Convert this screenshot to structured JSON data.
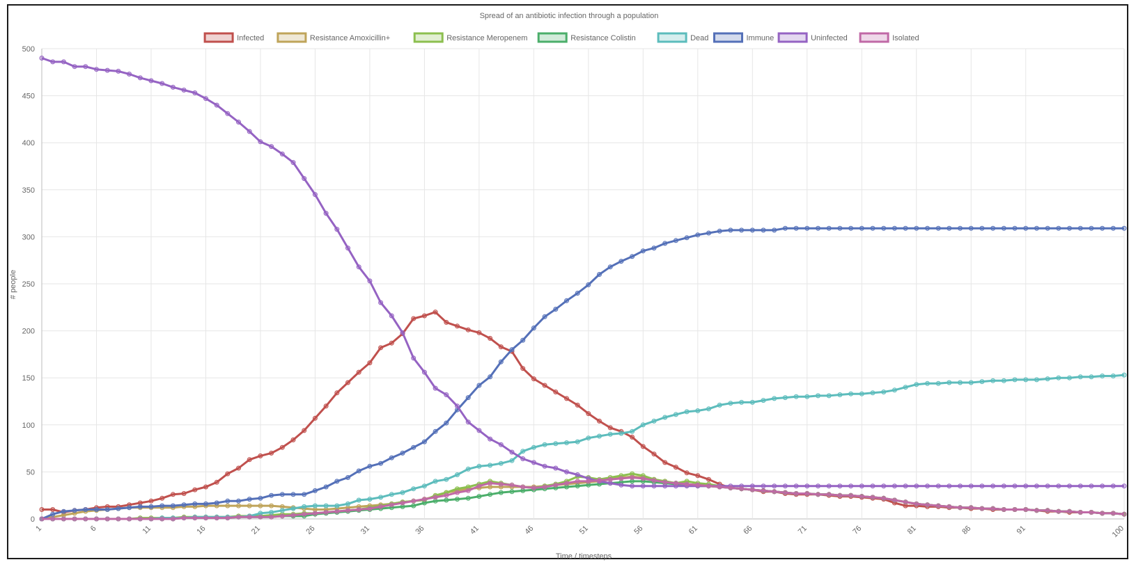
{
  "chart_data": {
    "type": "line",
    "title": "Spread of an antibiotic infection through a population",
    "xlabel": "Time / timesteps",
    "ylabel": "# people",
    "xlim": [
      1,
      100
    ],
    "ylim": [
      0,
      500
    ],
    "y_ticks": [
      0,
      50,
      100,
      150,
      200,
      250,
      300,
      350,
      400,
      450,
      500
    ],
    "x_ticks": [
      1,
      6,
      11,
      16,
      21,
      26,
      31,
      36,
      41,
      46,
      51,
      56,
      61,
      66,
      71,
      76,
      81,
      86,
      91,
      100
    ],
    "grid": true,
    "legend_position": "top",
    "series": [
      {
        "name": "Infected",
        "color": "#c0504d",
        "values": [
          10,
          10,
          7,
          9,
          10,
          12,
          13,
          13,
          15,
          17,
          19,
          22,
          26,
          27,
          31,
          34,
          39,
          48,
          54,
          63,
          67,
          70,
          76,
          84,
          94,
          107,
          120,
          134,
          145,
          156,
          166,
          182,
          187,
          197,
          213,
          216,
          220,
          209,
          205,
          201,
          198,
          192,
          183,
          178,
          160,
          149,
          142,
          135,
          128,
          121,
          112,
          104,
          97,
          93,
          87,
          77,
          69,
          60,
          55,
          49,
          46,
          42,
          37,
          33,
          32,
          31,
          29,
          29,
          27,
          26,
          26,
          26,
          25,
          24,
          24,
          23,
          22,
          21,
          17,
          14,
          14,
          13,
          13,
          12,
          12,
          11,
          11,
          10,
          10,
          10,
          10,
          9,
          8,
          8,
          7,
          7,
          7,
          6,
          6,
          5
        ]
      },
      {
        "name": "Resistance Amoxicillin+",
        "color": "#bfa45a",
        "values": [
          0,
          2,
          4,
          6,
          8,
          9,
          10,
          11,
          12,
          12,
          12,
          12,
          12,
          13,
          13,
          14,
          14,
          14,
          14,
          14,
          14,
          14,
          13,
          12,
          11,
          10,
          10,
          11,
          12,
          13,
          14,
          15,
          16,
          18,
          19,
          21,
          24,
          28,
          30,
          32,
          33,
          34,
          34,
          34,
          34,
          34,
          35,
          36,
          37,
          38,
          39,
          40,
          42,
          44,
          45,
          44,
          42,
          40,
          38,
          37,
          36,
          35,
          34,
          33,
          32,
          31,
          30,
          29,
          28,
          27,
          27,
          26,
          26,
          25,
          25,
          24,
          23,
          22,
          20,
          18,
          16,
          15,
          14,
          13,
          12,
          12,
          11,
          11,
          10,
          10,
          10,
          9,
          9,
          8,
          8,
          7,
          7,
          6,
          6,
          5
        ]
      },
      {
        "name": "Resistance Meropenem",
        "color": "#8cbf4f",
        "values": [
          0,
          0,
          0,
          0,
          0,
          0,
          0,
          0,
          0,
          1,
          1,
          1,
          1,
          2,
          2,
          2,
          2,
          2,
          3,
          3,
          3,
          4,
          5,
          5,
          6,
          6,
          7,
          8,
          9,
          10,
          12,
          14,
          16,
          18,
          19,
          20,
          25,
          28,
          32,
          34,
          37,
          40,
          38,
          36,
          34,
          33,
          35,
          37,
          40,
          45,
          44,
          42,
          44,
          46,
          48,
          46,
          42,
          40,
          38,
          40,
          38,
          37,
          35,
          33,
          32,
          31,
          30,
          29,
          28,
          27,
          27,
          26,
          26,
          25,
          25,
          24,
          23,
          22,
          20,
          18,
          16,
          15,
          14,
          13,
          12,
          12,
          11,
          11,
          10,
          10,
          10,
          9,
          9,
          8,
          8,
          7,
          7,
          6,
          6,
          5
        ]
      },
      {
        "name": "Resistance Colistin",
        "color": "#4bae6a",
        "values": [
          0,
          0,
          0,
          0,
          0,
          0,
          0,
          0,
          0,
          0,
          0,
          0,
          0,
          1,
          1,
          1,
          1,
          1,
          2,
          2,
          2,
          2,
          3,
          3,
          3,
          5,
          6,
          7,
          8,
          9,
          10,
          11,
          12,
          13,
          14,
          17,
          19,
          20,
          21,
          22,
          24,
          26,
          28,
          29,
          30,
          31,
          32,
          33,
          34,
          35,
          36,
          37,
          38,
          39,
          40,
          40,
          39,
          38,
          37,
          36,
          35,
          35,
          34,
          33,
          32,
          31,
          30,
          29,
          28,
          27,
          27,
          26,
          26,
          25,
          25,
          24,
          23,
          22,
          20,
          18,
          16,
          15,
          14,
          13,
          12,
          12,
          11,
          11,
          10,
          10,
          10,
          9,
          9,
          8,
          8,
          7,
          7,
          6,
          6,
          5
        ]
      },
      {
        "name": "Dead",
        "color": "#5cbcbc",
        "values": [
          0,
          0,
          0,
          0,
          0,
          0,
          0,
          0,
          0,
          0,
          0,
          1,
          1,
          1,
          2,
          2,
          2,
          2,
          2,
          3,
          6,
          7,
          9,
          11,
          13,
          14,
          14,
          14,
          16,
          20,
          21,
          23,
          26,
          28,
          32,
          35,
          40,
          42,
          47,
          53,
          56,
          57,
          59,
          62,
          72,
          76,
          79,
          80,
          81,
          82,
          86,
          88,
          90,
          91,
          93,
          100,
          104,
          108,
          111,
          114,
          115,
          117,
          121,
          123,
          124,
          124,
          126,
          128,
          129,
          130,
          130,
          131,
          131,
          132,
          133,
          133,
          134,
          135,
          137,
          140,
          143,
          144,
          144,
          145,
          145,
          145,
          146,
          147,
          147,
          148,
          148,
          148,
          149,
          150,
          150,
          151,
          151,
          152,
          152,
          153
        ]
      },
      {
        "name": "Immune",
        "color": "#5470b8",
        "values": [
          0,
          5,
          8,
          9,
          10,
          10,
          10,
          11,
          12,
          13,
          13,
          14,
          14,
          15,
          16,
          16,
          17,
          19,
          19,
          21,
          22,
          25,
          26,
          26,
          26,
          30,
          34,
          40,
          44,
          51,
          56,
          59,
          65,
          70,
          76,
          82,
          93,
          102,
          116,
          129,
          142,
          151,
          167,
          180,
          190,
          203,
          215,
          223,
          232,
          240,
          249,
          260,
          268,
          274,
          279,
          285,
          288,
          293,
          296,
          299,
          302,
          304,
          306,
          307,
          307,
          307,
          307,
          307,
          309,
          309,
          309,
          309,
          309,
          309,
          309,
          309,
          309,
          309,
          309,
          309,
          309,
          309,
          309,
          309,
          309,
          309,
          309,
          309,
          309,
          309,
          309,
          309,
          309,
          309,
          309,
          309,
          309,
          309,
          309,
          309
        ]
      },
      {
        "name": "Uninfected",
        "color": "#9563c3",
        "values": [
          490,
          486,
          486,
          481,
          481,
          478,
          477,
          476,
          473,
          469,
          466,
          463,
          459,
          456,
          453,
          447,
          440,
          431,
          422,
          412,
          401,
          396,
          388,
          379,
          362,
          345,
          325,
          308,
          288,
          268,
          253,
          230,
          216,
          198,
          171,
          156,
          139,
          132,
          120,
          103,
          94,
          85,
          79,
          71,
          64,
          60,
          56,
          54,
          50,
          47,
          43,
          40,
          38,
          36,
          35,
          35,
          35,
          35,
          35,
          35,
          35,
          35,
          35,
          35,
          35,
          35,
          35,
          35,
          35,
          35,
          35,
          35,
          35,
          35,
          35,
          35,
          35,
          35,
          35,
          35,
          35,
          35,
          35,
          35,
          35,
          35,
          35,
          35,
          35,
          35,
          35,
          35,
          35,
          35,
          35,
          35,
          35,
          35,
          35,
          35
        ]
      },
      {
        "name": "Isolated",
        "color": "#c069a6",
        "values": [
          0,
          0,
          0,
          0,
          0,
          0,
          0,
          0,
          0,
          0,
          0,
          0,
          0,
          1,
          1,
          1,
          1,
          1,
          2,
          2,
          2,
          2,
          3,
          4,
          5,
          6,
          7,
          8,
          9,
          10,
          11,
          13,
          15,
          17,
          19,
          21,
          23,
          25,
          28,
          30,
          35,
          38,
          37,
          36,
          34,
          33,
          34,
          36,
          38,
          40,
          40,
          41,
          42,
          43,
          44,
          43,
          41,
          39,
          38,
          37,
          36,
          35,
          34,
          33,
          32,
          31,
          30,
          29,
          28,
          27,
          27,
          26,
          26,
          25,
          25,
          24,
          23,
          22,
          20,
          18,
          16,
          15,
          14,
          13,
          12,
          12,
          11,
          11,
          10,
          10,
          10,
          9,
          9,
          8,
          8,
          7,
          7,
          6,
          6,
          5
        ]
      }
    ]
  }
}
